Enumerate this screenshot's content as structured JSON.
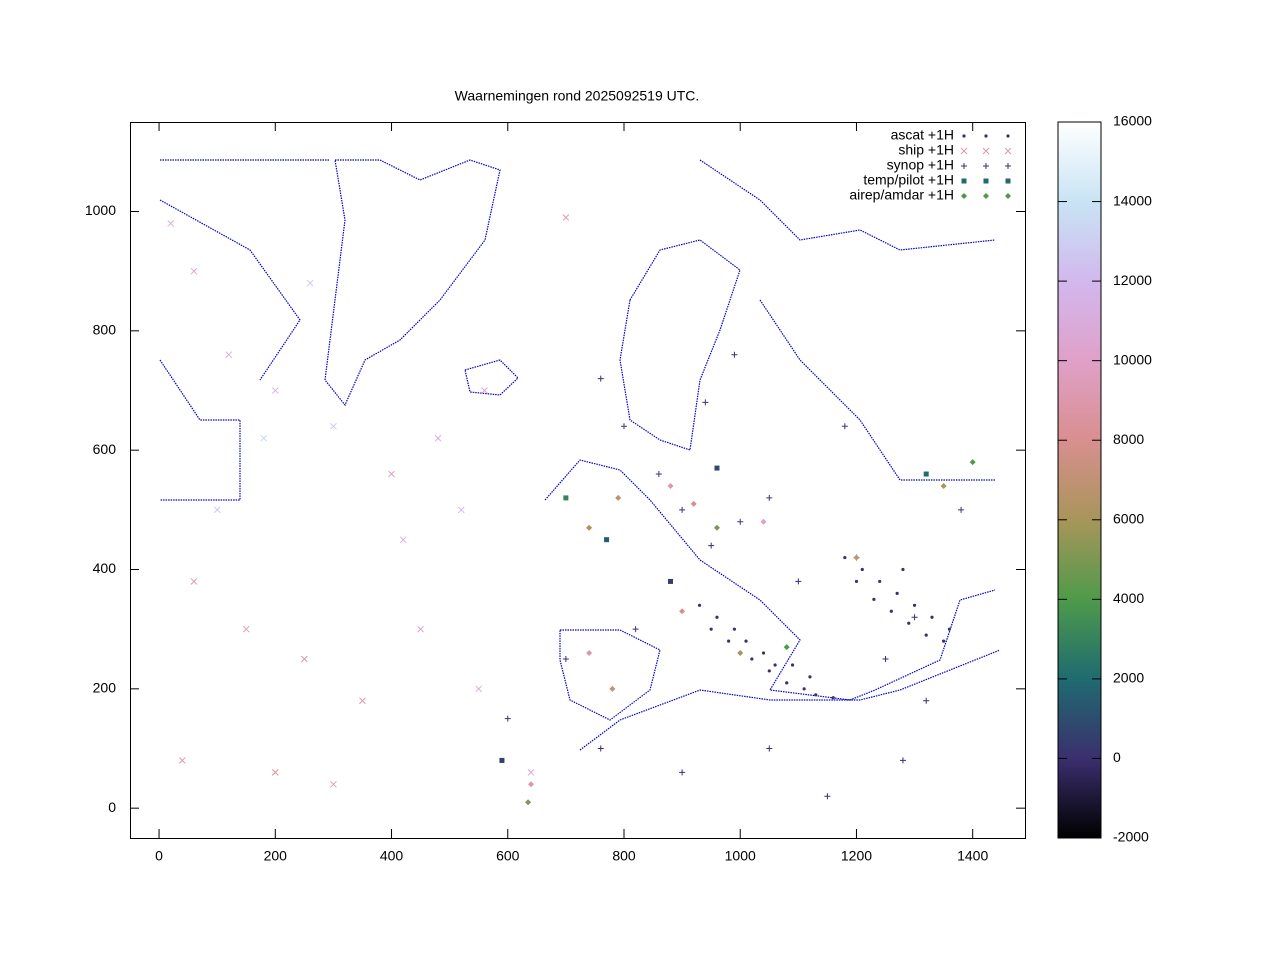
{
  "chart_data": {
    "type": "scatter",
    "title": "Waarnemingen rond 2025092519 UTC.",
    "xlim": [
      -50,
      1490
    ],
    "ylim": [
      -50,
      1150
    ],
    "xticks": [
      0,
      200,
      400,
      600,
      800,
      1000,
      1200,
      1400
    ],
    "yticks": [
      0,
      200,
      400,
      600,
      800,
      1000
    ],
    "cblim": [
      -2000,
      16000
    ],
    "cbticks": [
      -2000,
      0,
      2000,
      4000,
      6000,
      8000,
      10000,
      12000,
      14000,
      16000
    ],
    "palette": [
      "#000000",
      "#3b2f6e",
      "#1f6b70",
      "#4f9a4a",
      "#a8955a",
      "#d88f8f",
      "#e0a0c8",
      "#d2b8ee",
      "#c8e4f4",
      "#ffffff"
    ],
    "legend": "top-right",
    "series": [
      {
        "name": "ascat +1H",
        "marker": "dot",
        "x": [
          930,
          960,
          990,
          1010,
          1040,
          1060,
          950,
          980,
          1020,
          1050,
          1080,
          1110,
          1130,
          1160,
          1090,
          1120,
          1180,
          1210,
          1240,
          1270,
          1300,
          1330,
          1360,
          1200,
          1230,
          1260,
          1290,
          1320,
          1350,
          1280
        ],
        "y": [
          340,
          320,
          300,
          280,
          260,
          240,
          300,
          280,
          250,
          230,
          210,
          200,
          190,
          185,
          240,
          220,
          420,
          400,
          380,
          360,
          340,
          320,
          300,
          380,
          350,
          330,
          310,
          290,
          280,
          400
        ],
        "z": [
          0,
          0,
          100,
          0,
          0,
          0,
          0,
          200,
          0,
          0,
          0,
          0,
          0,
          0,
          100,
          0,
          0,
          0,
          100,
          0,
          0,
          0,
          0,
          0,
          0,
          200,
          0,
          0,
          0,
          0
        ]
      },
      {
        "name": "ship +1H",
        "marker": "cross",
        "x": [
          20,
          60,
          120,
          200,
          300,
          400,
          480,
          520,
          100,
          60,
          150,
          250,
          350,
          450,
          550,
          40,
          200,
          300,
          640,
          700,
          560,
          420,
          260,
          180
        ],
        "y": [
          980,
          900,
          760,
          700,
          640,
          560,
          620,
          500,
          500,
          380,
          300,
          250,
          180,
          300,
          200,
          80,
          60,
          40,
          60,
          990,
          700,
          450,
          880,
          620
        ],
        "z": [
          11000,
          10500,
          11500,
          12000,
          12500,
          10000,
          11000,
          12000,
          12500,
          9000,
          9500,
          9000,
          9000,
          10000,
          11000,
          9000,
          8500,
          9500,
          11000,
          9500,
          10500,
          11000,
          13000,
          13500
        ]
      },
      {
        "name": "synop +1H",
        "marker": "plus",
        "x": [
          760,
          800,
          860,
          900,
          950,
          1000,
          1050,
          1100,
          1200,
          1300,
          1380,
          820,
          700,
          760,
          900,
          1050,
          1150,
          1250,
          600,
          940,
          990,
          1180,
          1320,
          1280
        ],
        "y": [
          720,
          640,
          560,
          500,
          440,
          480,
          520,
          380,
          420,
          320,
          500,
          300,
          250,
          100,
          60,
          100,
          20,
          250,
          150,
          680,
          760,
          640,
          180,
          80
        ],
        "z": [
          0,
          500,
          300,
          200,
          100,
          400,
          300,
          0,
          100,
          0,
          400,
          200,
          100,
          0,
          0,
          0,
          0,
          0,
          300,
          200,
          100,
          300,
          0,
          0
        ]
      },
      {
        "name": "temp/pilot +1H",
        "marker": "square",
        "x": [
          960,
          700,
          880,
          1320,
          590,
          770
        ],
        "y": [
          570,
          520,
          380,
          560,
          80,
          450
        ],
        "z": [
          1000,
          3000,
          500,
          2000,
          500,
          1500
        ]
      },
      {
        "name": "airep/amdar +1H",
        "marker": "diamond",
        "x": [
          740,
          790,
          880,
          920,
          960,
          1040,
          1200,
          1350,
          1400,
          740,
          780,
          640,
          635,
          900,
          1000,
          1080
        ],
        "y": [
          470,
          520,
          540,
          510,
          470,
          480,
          420,
          540,
          580,
          260,
          200,
          40,
          10,
          330,
          260,
          270
        ],
        "z": [
          6000,
          7000,
          9000,
          8000,
          5000,
          10000,
          7000,
          6000,
          4000,
          9000,
          7000,
          9000,
          5000,
          8000,
          6000,
          4000
        ]
      }
    ]
  }
}
